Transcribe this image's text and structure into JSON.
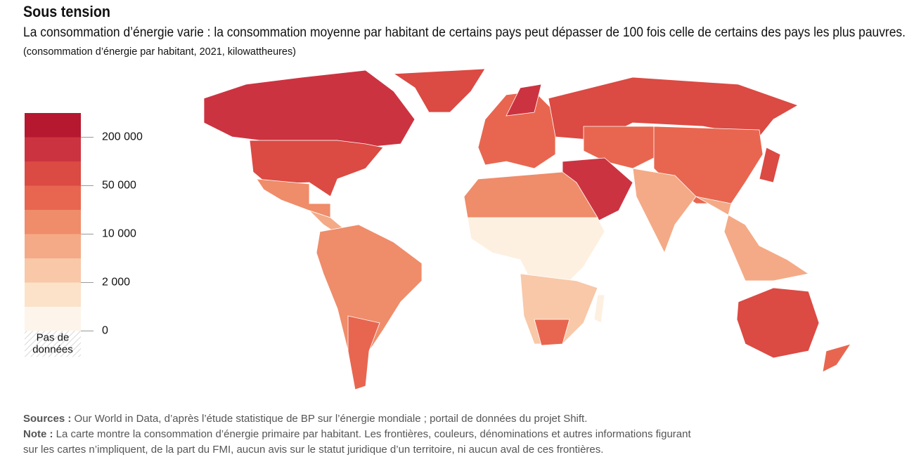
{
  "header": {
    "title": "Sous tension",
    "subtitle": "La consommation d’énergie varie : la consommation moyenne par habitant de certains pays peut dépasser de 100 fois celle de certains des pays les plus pauvres.",
    "unit": "(consommation d’énergie par habitant, 2021, kilowattheures)"
  },
  "legend": {
    "colors": [
      "#b5182f",
      "#cc3340",
      "#db4a43",
      "#e8664f",
      "#ef8c6a",
      "#f4aa86",
      "#f8c8a8",
      "#fbe2c9",
      "#fdf5eb"
    ],
    "ticks": [
      {
        "value": 200000,
        "label": "200 000"
      },
      {
        "value": 50000,
        "label": "50 000"
      },
      {
        "value": 10000,
        "label": "10 000"
      },
      {
        "value": 2000,
        "label": "2 000"
      },
      0
    ],
    "no_data": [
      "Pas de",
      "données"
    ]
  },
  "footer": {
    "sources": {
      "label": "Sources :",
      "text": "Our World in Data, d’après l’étude statistique de BP sur l’énergie mondiale ; portail de données du projet Shift."
    },
    "note": {
      "label": "Note :",
      "lines": [
        "La carte montre la consommation d’énergie primaire par habitant. Les frontières, couleurs, dénominations et autres informations figurant",
        "sur les cartes n’impliquent, de la part du FMI, aucun avis sur le statut juridique d’un territoire, ni aucun aval de ces frontières."
      ]
    }
  }
}
